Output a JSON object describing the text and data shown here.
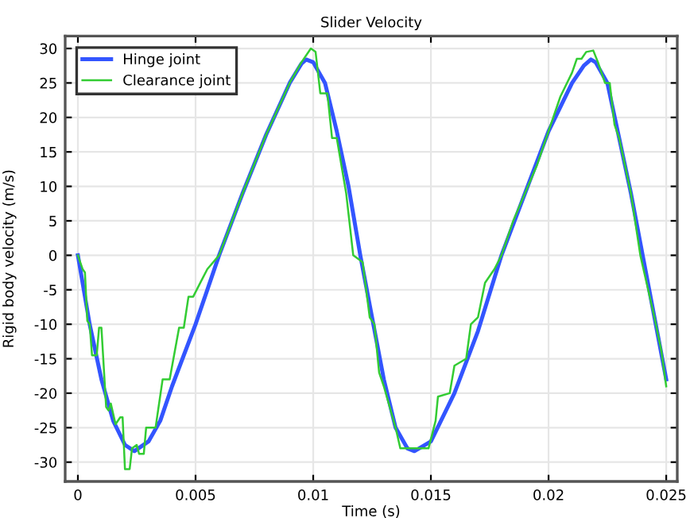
{
  "chart_data": {
    "type": "line",
    "title": "Slider Velocity",
    "xlabel": "Time (s)",
    "ylabel": "Rigid body velocity (m/s)",
    "xlim": [
      -0.00054,
      0.02547
    ],
    "ylim": [
      -32.8,
      31.8
    ],
    "xticks": [
      0,
      0.005,
      {
        "value": 0.01,
        "label": "0.01"
      },
      0.015,
      {
        "value": 0.02,
        "label": "0.02"
      },
      0.025
    ],
    "yticks": [
      -30,
      -25,
      -20,
      -15,
      -10,
      -5,
      0,
      5,
      10,
      15,
      20,
      25,
      30
    ],
    "grid": true,
    "legend": "top left",
    "line_style": "solid",
    "marker": "none",
    "series": [
      {
        "name": "Hinge joint",
        "color": "#3355ff",
        "x": [
          0,
          0.0005,
          0.001,
          0.0015,
          0.002,
          0.0024,
          0.003,
          0.0035,
          0.004,
          0.005,
          0.006,
          0.007,
          0.008,
          0.009,
          0.0095,
          0.0097,
          0.01,
          0.0105,
          0.011,
          0.0115,
          0.012,
          0.0125,
          0.013,
          0.0135,
          0.014,
          0.0143,
          0.015,
          0.016,
          0.017,
          0.018,
          0.019,
          0.02,
          0.021,
          0.0215,
          0.0218,
          0.022,
          0.0225,
          0.023,
          0.0235,
          0.024,
          0.0245,
          0.025
        ],
        "values": [
          0,
          -10,
          -18,
          -24,
          -27.5,
          -28.4,
          -27,
          -24,
          -19,
          -10,
          0,
          9,
          17.5,
          25,
          27.8,
          28.4,
          28,
          25,
          18,
          10,
          0,
          -9,
          -18,
          -25,
          -28,
          -28.4,
          -27,
          -20,
          -11,
          0,
          9,
          18,
          25,
          27.5,
          28.4,
          28,
          25,
          17,
          9,
          0,
          -9,
          -18
        ]
      },
      {
        "name": "Clearance joint",
        "color": "#33cc33",
        "x": [
          0,
          0.0001,
          0.0002,
          0.0003,
          0.0004,
          0.0005,
          0.0006,
          0.0008,
          0.0009,
          0.001,
          0.0012,
          0.0013,
          0.0014,
          0.0016,
          0.0018,
          0.0019,
          0.002,
          0.0022,
          0.0023,
          0.0025,
          0.0026,
          0.0028,
          0.0029,
          0.0033,
          0.0036,
          0.0039,
          0.0043,
          0.0045,
          0.0047,
          0.0049,
          0.0055,
          0.006,
          0.007,
          0.008,
          0.009,
          0.0095,
          0.0099,
          0.0101,
          0.0103,
          0.0106,
          0.0108,
          0.011,
          0.0114,
          0.0117,
          0.0121,
          0.0124,
          0.0126,
          0.0128,
          0.013,
          0.0135,
          0.0137,
          0.0149,
          0.0152,
          0.0153,
          0.0158,
          0.016,
          0.0165,
          0.0167,
          0.017,
          0.0173,
          0.0177,
          0.018,
          0.0185,
          0.019,
          0.0195,
          0.02,
          0.0205,
          0.021,
          0.0212,
          0.0214,
          0.0216,
          0.0219,
          0.0221,
          0.0224,
          0.0226,
          0.0228,
          0.023,
          0.0235,
          0.0239,
          0.0245,
          0.0248,
          0.025
        ],
        "values": [
          0,
          -1,
          -2,
          -2.5,
          -9.5,
          -10,
          -14.5,
          -14.5,
          -10.5,
          -10.5,
          -22,
          -22.5,
          -21.5,
          -24.5,
          -23.5,
          -23.5,
          -31,
          -31,
          -28,
          -27.5,
          -28.8,
          -28.8,
          -25,
          -25,
          -18,
          -18,
          -10.5,
          -10.5,
          -6,
          -6,
          -2,
          0,
          9,
          17.5,
          25,
          28,
          30,
          29.5,
          23.5,
          23.5,
          17,
          17,
          9,
          0,
          -1,
          -9,
          -10,
          -17,
          -19,
          -25,
          -28,
          -28,
          -24,
          -20.5,
          -20,
          -16,
          -15,
          -10,
          -9,
          -4,
          -2,
          0,
          5,
          9,
          13,
          18,
          23,
          26.5,
          28.5,
          28.5,
          29.5,
          29.7,
          28,
          25,
          25,
          19,
          17,
          9,
          0,
          -9,
          -14,
          -19
        ]
      }
    ]
  }
}
